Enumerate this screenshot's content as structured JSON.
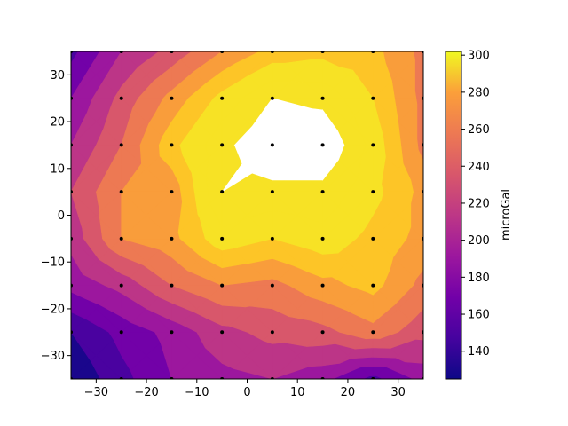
{
  "chart_data": {
    "type": "contour",
    "title": "",
    "xlabel": "",
    "ylabel": "",
    "xlim": [
      -35,
      35
    ],
    "ylim": [
      -35,
      35
    ],
    "x_ticks": [
      -30,
      -20,
      -10,
      0,
      10,
      20,
      30
    ],
    "y_ticks": [
      -30,
      -20,
      -10,
      0,
      10,
      20,
      30
    ],
    "grid_x": [
      -35,
      -25,
      -15,
      -5,
      5,
      15,
      25,
      35
    ],
    "grid_y": [
      -35,
      -25,
      -15,
      -5,
      5,
      15,
      25,
      35
    ],
    "z": [
      [
        126,
        150,
        170,
        180,
        185,
        175,
        150,
        175
      ],
      [
        140,
        160,
        175,
        195,
        205,
        210,
        225,
        205
      ],
      [
        175,
        190,
        215,
        230,
        225,
        240,
        250,
        225
      ],
      [
        190,
        230,
        240,
        270,
        260,
        270,
        255,
        240
      ],
      [
        200,
        230,
        235,
        290,
        285,
        285,
        265,
        240
      ],
      [
        185,
        215,
        255,
        285,
        305,
        305,
        270,
        225
      ],
      [
        170,
        205,
        235,
        265,
        290,
        285,
        260,
        225
      ],
      [
        150,
        185,
        205,
        230,
        250,
        255,
        250,
        225
      ]
    ],
    "levels": [
      125,
      140,
      155,
      170,
      185,
      200,
      215,
      230,
      245,
      260,
      275,
      290,
      305
    ],
    "level_colors": [
      "#1a068c",
      "#4a02a0",
      "#7201a8",
      "#9c179e",
      "#bc3587",
      "#d8576b",
      "#ed7953",
      "#f99d3b",
      "#fdc527",
      "#f7e225",
      "#f7e225",
      "#ffffff"
    ],
    "sample_points": "grid",
    "colorbar": {
      "label": "microGal",
      "range": [
        125,
        302
      ],
      "ticks": [
        140,
        160,
        180,
        200,
        220,
        240,
        260,
        280,
        300
      ],
      "colormap": "plasma"
    }
  }
}
